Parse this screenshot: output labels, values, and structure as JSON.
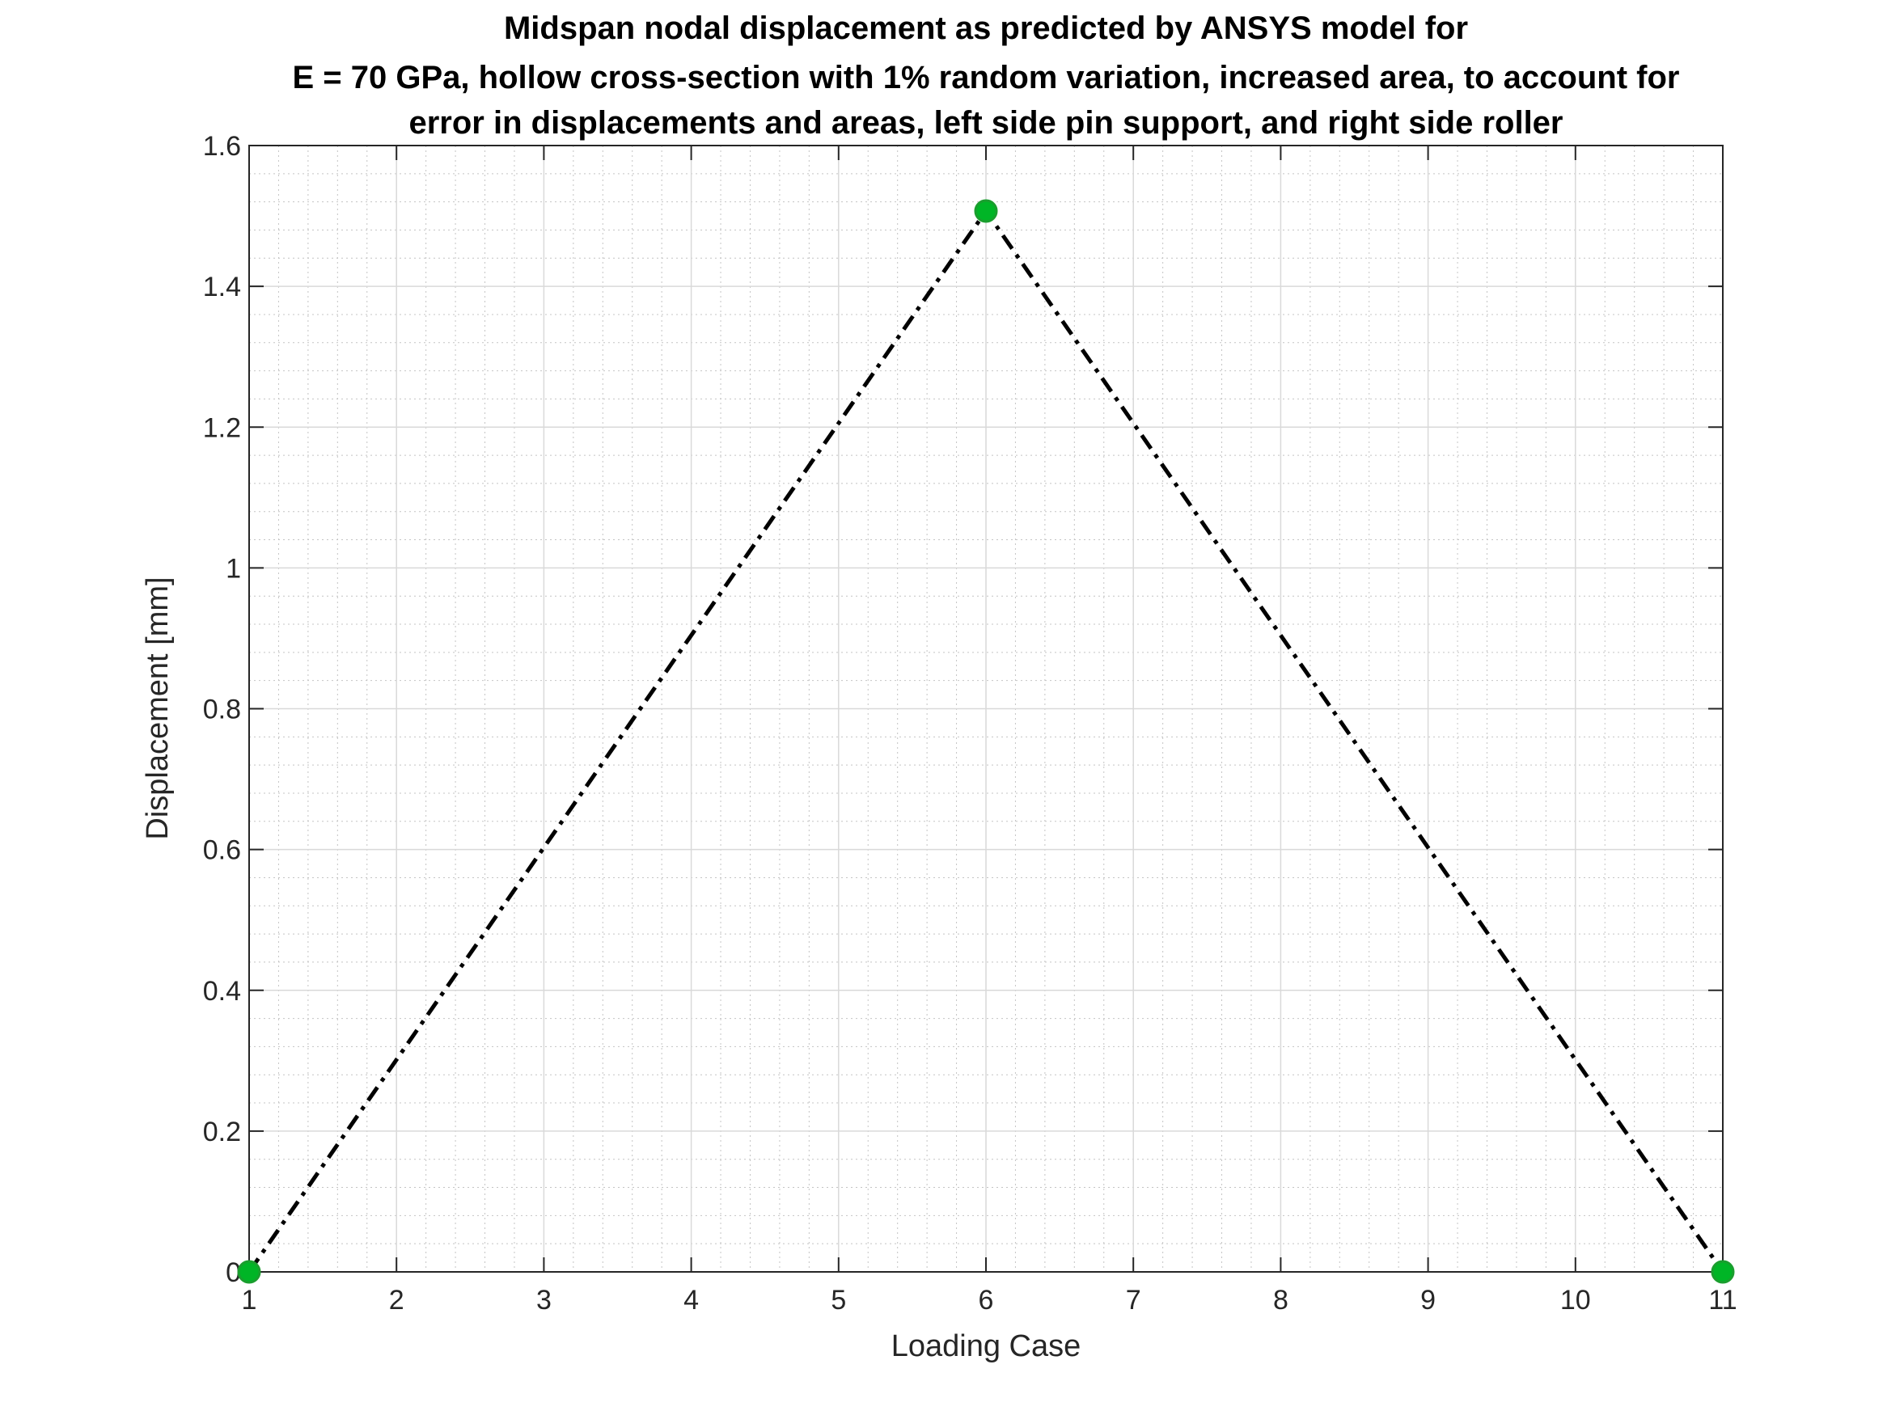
{
  "chart_data": {
    "type": "line",
    "title_lines": [
      "Midspan nodal displacement as predicted by ANSYS model for",
      "E = 70 GPa, hollow cross-section with 1% random variation, increased area, to account for",
      "error in displacements and areas, left side pin support, and right side roller"
    ],
    "xlabel": "Loading Case",
    "ylabel": "Displacement [mm]",
    "xlim": [
      1,
      11
    ],
    "ylim": [
      0,
      1.6
    ],
    "x_ticks": [
      1,
      2,
      3,
      4,
      5,
      6,
      7,
      8,
      9,
      10,
      11
    ],
    "x_tick_labels": [
      "1",
      "2",
      "3",
      "4",
      "5",
      "6",
      "7",
      "8",
      "9",
      "10",
      "11"
    ],
    "y_ticks": [
      0,
      0.2,
      0.4,
      0.6,
      0.8,
      1,
      1.2,
      1.4,
      1.6
    ],
    "y_tick_labels": [
      "0",
      "0.2",
      "0.4",
      "0.6",
      "0.8",
      "1",
      "1.2",
      "1.4",
      "1.6"
    ],
    "grid": true,
    "minor_grid": true,
    "series": [
      {
        "x": [
          1,
          6,
          11
        ],
        "y": [
          0,
          1.507,
          0
        ],
        "line_color": "#000000",
        "line_style": "dash-dot",
        "marker_color": "#00b526"
      }
    ]
  }
}
